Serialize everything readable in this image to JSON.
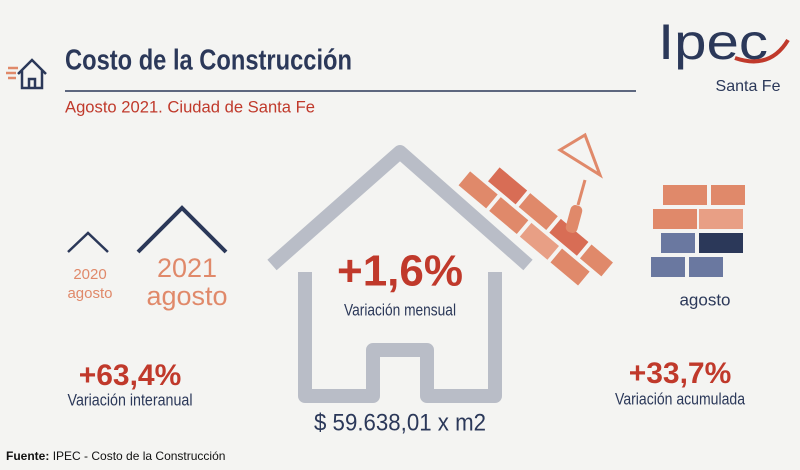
{
  "header": {
    "title": "Costo de la Construcción",
    "subtitle": "Agosto 2021. Ciudad de Santa Fe"
  },
  "logo": {
    "name": "Ipec",
    "place": "Santa Fe"
  },
  "left": {
    "previous_year": "2020",
    "previous_month": "agosto",
    "current_year": "2021",
    "current_month": "agosto",
    "value": "+63,4%",
    "label": "Variación interanual"
  },
  "center": {
    "value": "+1,6%",
    "label": "Variación mensual",
    "price": "$ 59.638,01 x m2"
  },
  "right": {
    "month": "agosto",
    "value": "+33,7%",
    "label": "Variación acumulada"
  },
  "footer": {
    "source_label": "Fuente:",
    "source": "IPEC - Costo de la Construcción"
  }
}
